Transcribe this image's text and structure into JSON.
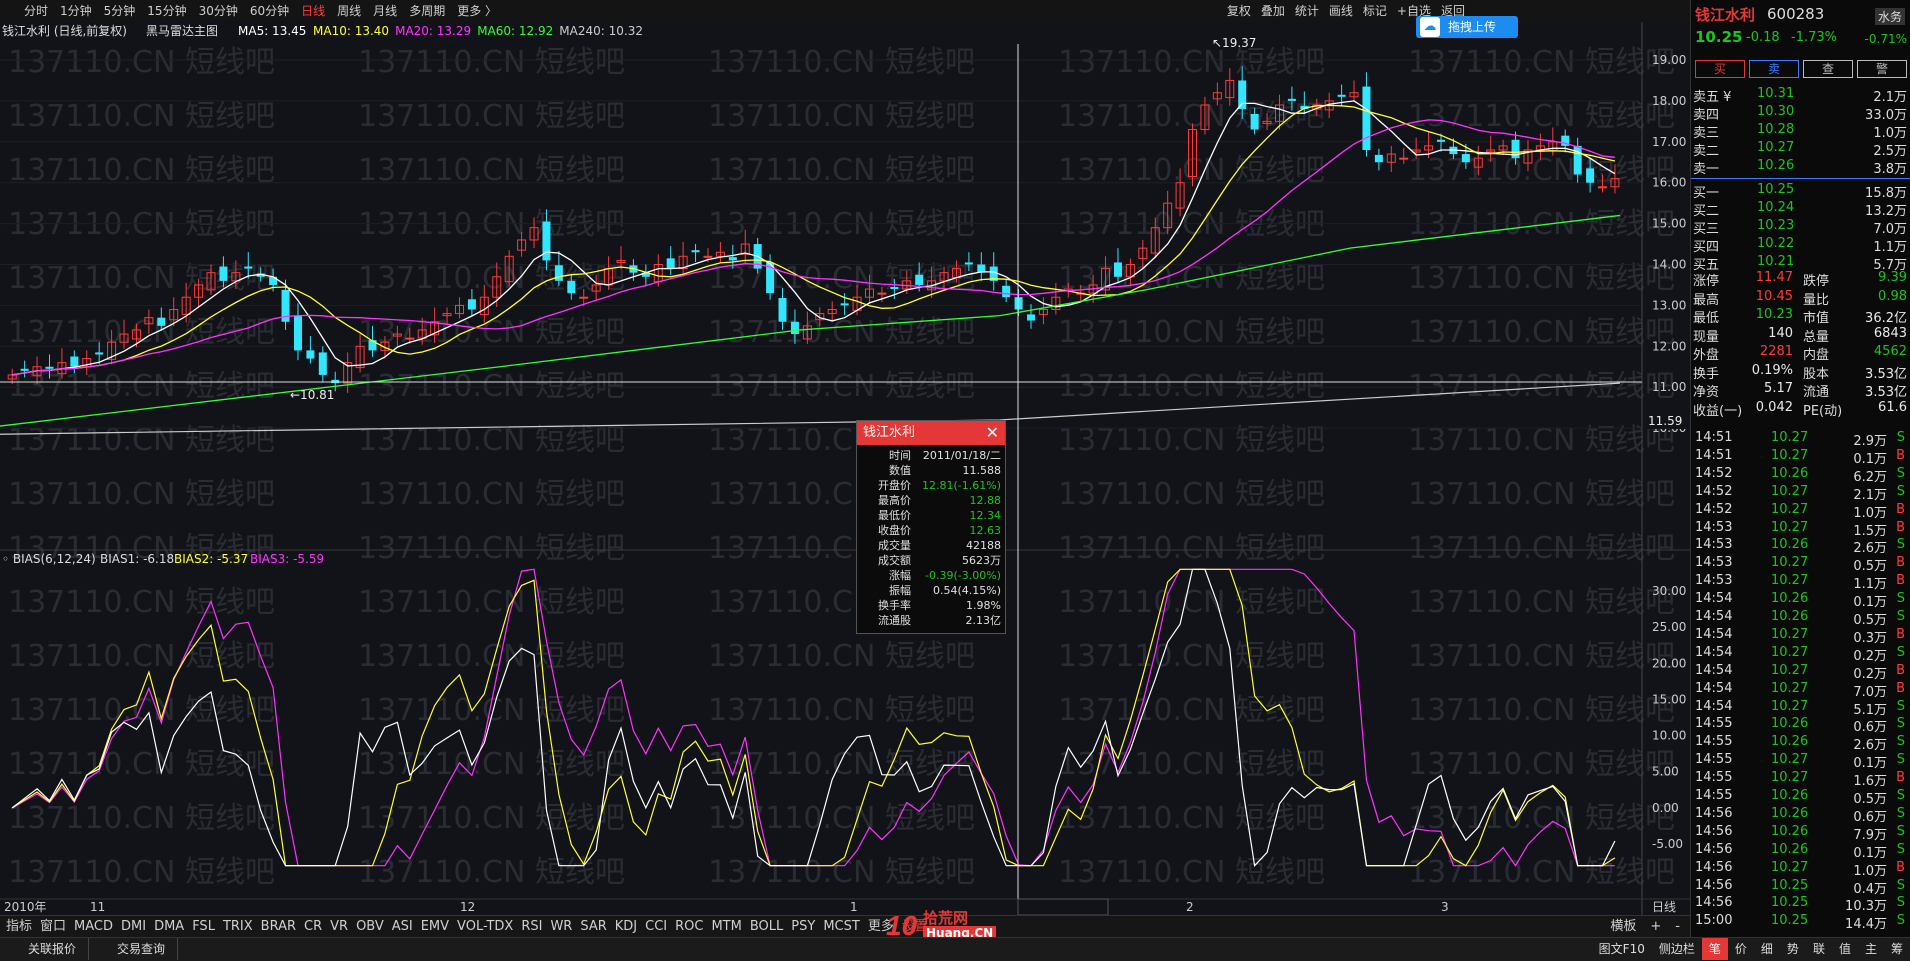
{
  "period_tabs": [
    "分时",
    "1分钟",
    "5分钟",
    "15分钟",
    "30分钟",
    "60分钟",
    "日线",
    "周线",
    "月线",
    "多周期",
    "更多 〉"
  ],
  "active_period": "日线",
  "toolbar": [
    "复权",
    "叠加",
    "统计",
    "画线",
    "标记",
    "+自选",
    "返回"
  ],
  "upload_button": "拖拽上传",
  "chart_title": "钱江水利 (日线,前复权)",
  "main_indicator": {
    "name": "黑马雷达主图",
    "ma": [
      {
        "label": "MA5: 13.45",
        "color": "#ffffff"
      },
      {
        "label": "MA10: 13.40",
        "color": "#ffff33"
      },
      {
        "label": "MA20: 13.29",
        "color": "#ff33ff"
      },
      {
        "label": "MA60: 12.92",
        "color": "#33ff33"
      },
      {
        "label": "MA240: 10.32",
        "color": "#cccccc"
      }
    ]
  },
  "watermark": "137110.CN 短线吧",
  "price_axis": [
    "19.00",
    "18.00",
    "17.00",
    "16.00",
    "15.00",
    "14.00",
    "13.00",
    "12.00",
    "11.00",
    "10.00"
  ],
  "crosshair_price": "11.59",
  "high_marker": "19.37",
  "low_marker": "10.81",
  "bias_indicator": {
    "title": "BIAS(6,12,24)",
    "bias1": "BIAS1: -6.18",
    "bias2": "BIAS2: -5.37",
    "bias3": "BIAS3: -5.59"
  },
  "bias_axis": [
    "30.00",
    "25.00",
    "20.00",
    "15.00",
    "10.00",
    "5.00",
    "0.00",
    "-5.00"
  ],
  "date_axis": [
    "2010年",
    "11",
    "12",
    "1",
    "2011/01/18/二",
    "2",
    "3"
  ],
  "date_axis_period": "日线",
  "popup": {
    "title": "钱江水利",
    "rows": [
      {
        "k": "时间",
        "v": "2011/01/18/二",
        "c": "#e0e0e0"
      },
      {
        "k": "数值",
        "v": "11.588",
        "c": "#e0e0e0"
      },
      {
        "k": "开盘价",
        "v": "12.81(-1.61%)",
        "c": "#1ec41e"
      },
      {
        "k": "最高价",
        "v": "12.88",
        "c": "#1ec41e"
      },
      {
        "k": "最低价",
        "v": "12.34",
        "c": "#1ec41e"
      },
      {
        "k": "收盘价",
        "v": "12.63",
        "c": "#1ec41e"
      },
      {
        "k": "成交量",
        "v": "42188",
        "c": "#e0e0e0"
      },
      {
        "k": "成交额",
        "v": "5623万",
        "c": "#e0e0e0"
      },
      {
        "k": "涨幅",
        "v": "-0.39(-3.00%)",
        "c": "#1ec41e"
      },
      {
        "k": "振幅",
        "v": "0.54(4.15%)",
        "c": "#e0e0e0"
      },
      {
        "k": "换手率",
        "v": "1.98%",
        "c": "#e0e0e0"
      },
      {
        "k": "流通股",
        "v": "2.13亿",
        "c": "#e0e0e0"
      }
    ]
  },
  "indicator_tabs": [
    "指标",
    "窗口",
    "MACD",
    "DMI",
    "DMA",
    "FSL",
    "TRIX",
    "BRAR",
    "CR",
    "VR",
    "OBV",
    "ASI",
    "EMV",
    "VOL-TDX",
    "RSI",
    "WR",
    "SAR",
    "KDJ",
    "CCI",
    "ROC",
    "MTM",
    "BOLL",
    "PSY",
    "MCST",
    "更多",
    "设置"
  ],
  "indicator_right": [
    "横板",
    "+",
    "-"
  ],
  "logo": {
    "num": "10",
    "text": "拾荒网",
    "url": "Huang.CN"
  },
  "bottom_left": [
    "关联报价",
    "交易查询"
  ],
  "bottom_right": [
    "图文F10",
    "侧边栏",
    "笔",
    "价",
    "细",
    "势",
    "联",
    "值",
    "主",
    "筹"
  ],
  "stock": {
    "name": "钱江水利",
    "code": "600283",
    "tag": "水务",
    "price": "10.25",
    "change": "-0.18",
    "pct": "-1.73%",
    "tag_pct": "-0.71%",
    "buttons": [
      "买",
      "卖",
      "查",
      "警"
    ]
  },
  "orderbook": {
    "sell": [
      {
        "label": "卖五 ¥",
        "price": "10.31",
        "vol": "2.1万"
      },
      {
        "label": "卖四",
        "price": "10.30",
        "vol": "33.0万"
      },
      {
        "label": "卖三",
        "price": "10.28",
        "vol": "1.0万"
      },
      {
        "label": "卖二",
        "price": "10.27",
        "vol": "2.5万"
      },
      {
        "label": "卖一",
        "price": "10.26",
        "vol": "3.8万"
      }
    ],
    "buy": [
      {
        "label": "买一",
        "price": "10.25",
        "vol": "15.8万"
      },
      {
        "label": "买二",
        "price": "10.24",
        "vol": "13.2万"
      },
      {
        "label": "买三",
        "price": "10.23",
        "vol": "7.0万"
      },
      {
        "label": "买四",
        "price": "10.22",
        "vol": "1.1万"
      },
      {
        "label": "买五",
        "price": "10.21",
        "vol": "5.7万"
      }
    ]
  },
  "stats": [
    [
      {
        "k": "涨停",
        "v": "11.47",
        "c": "red"
      },
      {
        "k": "跌停",
        "v": "9.39",
        "c": "green"
      }
    ],
    [
      {
        "k": "最高",
        "v": "10.45",
        "c": "red"
      },
      {
        "k": "量比",
        "v": "0.98",
        "c": "green"
      }
    ],
    [
      {
        "k": "最低",
        "v": "10.23",
        "c": "green"
      },
      {
        "k": "市值",
        "v": "36.2亿",
        "c": "white"
      }
    ],
    [
      {
        "k": "现量",
        "v": "140",
        "c": "white"
      },
      {
        "k": "总量",
        "v": "6843",
        "c": "white"
      }
    ],
    [
      {
        "k": "外盘",
        "v": "2281",
        "c": "red"
      },
      {
        "k": "内盘",
        "v": "4562",
        "c": "green"
      }
    ],
    [
      {
        "k": "换手",
        "v": "0.19%",
        "c": "white"
      },
      {
        "k": "股本",
        "v": "3.53亿",
        "c": "white"
      }
    ],
    [
      {
        "k": "净资",
        "v": "5.17",
        "c": "white"
      },
      {
        "k": "流通",
        "v": "3.53亿",
        "c": "white"
      }
    ],
    [
      {
        "k": "收益(一)",
        "v": "0.042",
        "c": "white"
      },
      {
        "k": "PE(动)",
        "v": "61.6",
        "c": "white"
      }
    ]
  ],
  "ticks": [
    {
      "t": "14:51",
      "p": "10.27",
      "v": "2.9万",
      "s": "S"
    },
    {
      "t": "14:51",
      "p": "10.27",
      "v": "0.1万",
      "s": "B"
    },
    {
      "t": "14:52",
      "p": "10.26",
      "v": "6.2万",
      "s": "S"
    },
    {
      "t": "14:52",
      "p": "10.27",
      "v": "2.1万",
      "s": "S"
    },
    {
      "t": "14:52",
      "p": "10.27",
      "v": "1.0万",
      "s": "B"
    },
    {
      "t": "14:53",
      "p": "10.27",
      "v": "1.5万",
      "s": "B"
    },
    {
      "t": "14:53",
      "p": "10.26",
      "v": "2.6万",
      "s": "S"
    },
    {
      "t": "14:53",
      "p": "10.27",
      "v": "0.5万",
      "s": "B"
    },
    {
      "t": "14:53",
      "p": "10.27",
      "v": "1.1万",
      "s": "B"
    },
    {
      "t": "14:54",
      "p": "10.26",
      "v": "0.1万",
      "s": "S"
    },
    {
      "t": "14:54",
      "p": "10.26",
      "v": "0.5万",
      "s": "S"
    },
    {
      "t": "14:54",
      "p": "10.27",
      "v": "0.3万",
      "s": "B"
    },
    {
      "t": "14:54",
      "p": "10.27",
      "v": "0.2万",
      "s": "S"
    },
    {
      "t": "14:54",
      "p": "10.27",
      "v": "0.2万",
      "s": "B"
    },
    {
      "t": "14:54",
      "p": "10.27",
      "v": "7.0万",
      "s": "B"
    },
    {
      "t": "14:54",
      "p": "10.27",
      "v": "5.1万",
      "s": "S"
    },
    {
      "t": "14:55",
      "p": "10.26",
      "v": "0.6万",
      "s": "S"
    },
    {
      "t": "14:55",
      "p": "10.26",
      "v": "2.6万",
      "s": "S"
    },
    {
      "t": "14:55",
      "p": "10.27",
      "v": "0.1万",
      "s": "S"
    },
    {
      "t": "14:55",
      "p": "10.27",
      "v": "1.6万",
      "s": "B"
    },
    {
      "t": "14:55",
      "p": "10.26",
      "v": "0.5万",
      "s": "S"
    },
    {
      "t": "14:56",
      "p": "10.26",
      "v": "0.6万",
      "s": "S"
    },
    {
      "t": "14:56",
      "p": "10.26",
      "v": "7.9万",
      "s": "S"
    },
    {
      "t": "14:56",
      "p": "10.26",
      "v": "0.1万",
      "s": "S"
    },
    {
      "t": "14:56",
      "p": "10.27",
      "v": "1.0万",
      "s": "B"
    },
    {
      "t": "14:56",
      "p": "10.25",
      "v": "0.4万",
      "s": "S"
    },
    {
      "t": "14:56",
      "p": "10.25",
      "v": "10.3万",
      "s": "S"
    },
    {
      "t": "15:00",
      "p": "10.25",
      "v": "14.4万",
      "s": "S"
    }
  ],
  "colors": {
    "up": "#ff3b3b",
    "down": "#33e6ff",
    "bg": "#111318",
    "green": "#1ec41e"
  }
}
